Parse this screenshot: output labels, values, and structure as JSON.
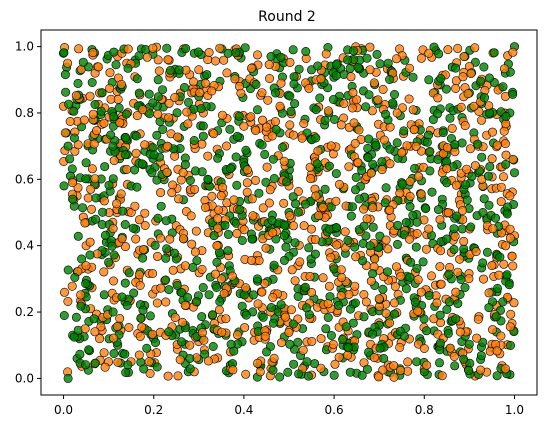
{
  "chart_data": {
    "type": "scatter",
    "title": "Round 2",
    "xlabel": "",
    "ylabel": "",
    "xlim": [
      -0.05,
      1.05
    ],
    "ylim": [
      -0.05,
      1.05
    ],
    "x_ticks": [
      0.0,
      0.2,
      0.4,
      0.6,
      0.8,
      1.0
    ],
    "x_tick_labels": [
      "0.0",
      "0.2",
      "0.4",
      "0.6",
      "0.8",
      "1.0"
    ],
    "y_ticks": [
      0.0,
      0.2,
      0.4,
      0.6,
      0.8,
      1.0
    ],
    "y_tick_labels": [
      "0.0",
      "0.2",
      "0.4",
      "0.6",
      "0.8",
      "1.0"
    ],
    "grid": false,
    "legend": false,
    "marker_alpha": 0.8,
    "series": [
      {
        "color": "#ff7f0e",
        "points_total": 1000,
        "points": [
          [
            0.0,
            0.82
          ],
          [
            0.02,
            0.59
          ],
          [
            0.03,
            0.55
          ],
          [
            0.05,
            0.47
          ],
          [
            0.06,
            0.57
          ],
          [
            0.07,
            0.92
          ],
          [
            0.08,
            0.86
          ],
          [
            0.05,
            0.4
          ],
          [
            0.04,
            0.33
          ],
          [
            0.06,
            0.21
          ],
          [
            0.08,
            0.12
          ],
          [
            0.1,
            0.05
          ],
          [
            0.12,
            0.97
          ],
          [
            0.13,
            0.78
          ],
          [
            0.14,
            0.63
          ],
          [
            0.15,
            0.5
          ],
          [
            0.16,
            0.42
          ],
          [
            0.17,
            0.28
          ],
          [
            0.18,
            0.15
          ],
          [
            0.19,
            0.05
          ],
          [
            0.21,
            0.96
          ],
          [
            0.22,
            0.84
          ],
          [
            0.23,
            0.7
          ],
          [
            0.24,
            0.56
          ],
          [
            0.25,
            0.46
          ],
          [
            0.26,
            0.33
          ],
          [
            0.27,
            0.22
          ],
          [
            0.28,
            0.1
          ],
          [
            0.29,
            0.02
          ],
          [
            0.3,
            0.93
          ],
          [
            0.31,
            0.8
          ],
          [
            0.32,
            0.67
          ],
          [
            0.33,
            0.52
          ],
          [
            0.34,
            0.4
          ],
          [
            0.35,
            0.3
          ],
          [
            0.36,
            0.18
          ],
          [
            0.37,
            0.08
          ],
          [
            0.38,
            0.99
          ],
          [
            0.39,
            0.88
          ],
          [
            0.4,
            0.76
          ],
          [
            0.41,
            0.62
          ],
          [
            0.42,
            0.49
          ],
          [
            0.43,
            0.37
          ],
          [
            0.44,
            0.26
          ],
          [
            0.45,
            0.14
          ],
          [
            0.46,
            0.03
          ],
          [
            0.47,
            0.94
          ],
          [
            0.48,
            0.82
          ],
          [
            0.49,
            0.7
          ],
          [
            0.5,
            0.58
          ],
          [
            0.51,
            0.46
          ],
          [
            0.52,
            0.34
          ],
          [
            0.53,
            0.22
          ],
          [
            0.54,
            0.11
          ],
          [
            0.55,
            0.01
          ],
          [
            0.56,
            0.9
          ],
          [
            0.57,
            0.78
          ],
          [
            0.58,
            0.65
          ],
          [
            0.59,
            0.53
          ],
          [
            0.6,
            0.41
          ],
          [
            0.61,
            0.29
          ],
          [
            0.62,
            0.17
          ],
          [
            0.63,
            0.07
          ],
          [
            0.64,
            0.96
          ],
          [
            0.65,
            0.84
          ],
          [
            0.66,
            0.72
          ],
          [
            0.67,
            0.6
          ],
          [
            0.68,
            0.48
          ],
          [
            0.69,
            0.36
          ],
          [
            0.7,
            0.24
          ],
          [
            0.71,
            0.12
          ],
          [
            0.72,
            0.04
          ],
          [
            0.73,
            0.92
          ],
          [
            0.74,
            0.8
          ],
          [
            0.75,
            0.68
          ],
          [
            0.76,
            0.56
          ],
          [
            0.77,
            0.44
          ],
          [
            0.78,
            0.32
          ],
          [
            0.79,
            0.2
          ],
          [
            0.8,
            0.09
          ],
          [
            0.81,
            0.98
          ],
          [
            0.82,
            0.86
          ],
          [
            0.83,
            0.74
          ],
          [
            0.84,
            0.62
          ],
          [
            0.85,
            0.5
          ],
          [
            0.86,
            0.38
          ],
          [
            0.87,
            0.26
          ],
          [
            0.88,
            0.14
          ],
          [
            0.89,
            0.05
          ],
          [
            0.9,
            0.94
          ],
          [
            0.91,
            0.82
          ],
          [
            0.92,
            0.7
          ],
          [
            0.93,
            0.58
          ],
          [
            0.94,
            0.46
          ],
          [
            0.95,
            0.34
          ],
          [
            0.96,
            0.22
          ],
          [
            0.97,
            0.1
          ],
          [
            0.98,
            0.85
          ],
          [
            0.99,
            0.55
          ],
          [
            1.0,
            0.43
          ]
        ]
      },
      {
        "color": "#008000",
        "points_total": 1000,
        "points": [
          [
            0.0,
            0.98
          ],
          [
            0.01,
            0.7
          ],
          [
            0.02,
            0.13
          ],
          [
            0.01,
            0.0
          ],
          [
            0.03,
            0.06
          ],
          [
            0.04,
            0.36
          ],
          [
            0.05,
            0.65
          ],
          [
            0.07,
            0.78
          ],
          [
            0.09,
            0.55
          ],
          [
            0.1,
            0.35
          ],
          [
            0.11,
            0.2
          ],
          [
            0.12,
            0.1
          ],
          [
            0.13,
            0.88
          ],
          [
            0.14,
            0.72
          ],
          [
            0.15,
            0.58
          ],
          [
            0.16,
            0.45
          ],
          [
            0.17,
            0.32
          ],
          [
            0.18,
            0.22
          ],
          [
            0.2,
            0.12
          ],
          [
            0.21,
            0.9
          ],
          [
            0.22,
            0.75
          ],
          [
            0.23,
            0.62
          ],
          [
            0.24,
            0.48
          ],
          [
            0.25,
            0.36
          ],
          [
            0.26,
            0.26
          ],
          [
            0.27,
            0.16
          ],
          [
            0.28,
            0.06
          ],
          [
            0.29,
            0.98
          ],
          [
            0.3,
            0.85
          ],
          [
            0.31,
            0.73
          ],
          [
            0.32,
            0.6
          ],
          [
            0.33,
            0.47
          ],
          [
            0.34,
            0.35
          ],
          [
            0.35,
            0.24
          ],
          [
            0.36,
            0.13
          ],
          [
            0.37,
            0.04
          ],
          [
            0.38,
            0.91
          ],
          [
            0.39,
            0.79
          ],
          [
            0.4,
            0.66
          ],
          [
            0.41,
            0.54
          ],
          [
            0.42,
            0.42
          ],
          [
            0.43,
            0.3
          ],
          [
            0.44,
            0.19
          ],
          [
            0.45,
            0.08
          ],
          [
            0.46,
            0.97
          ],
          [
            0.47,
            0.86
          ],
          [
            0.48,
            0.74
          ],
          [
            0.49,
            0.61
          ],
          [
            0.5,
            0.5
          ],
          [
            0.51,
            0.38
          ],
          [
            0.52,
            0.27
          ],
          [
            0.53,
            0.15
          ],
          [
            0.54,
            0.05
          ],
          [
            0.55,
            0.93
          ],
          [
            0.56,
            0.81
          ],
          [
            0.57,
            0.69
          ],
          [
            0.58,
            0.57
          ],
          [
            0.59,
            0.45
          ],
          [
            0.6,
            0.33
          ],
          [
            0.61,
            0.22
          ],
          [
            0.62,
            0.1
          ],
          [
            0.63,
            0.99
          ],
          [
            0.64,
            0.88
          ],
          [
            0.65,
            0.76
          ],
          [
            0.66,
            0.64
          ],
          [
            0.67,
            0.52
          ],
          [
            0.68,
            0.4
          ],
          [
            0.69,
            0.28
          ],
          [
            0.7,
            0.16
          ],
          [
            0.71,
            0.06
          ],
          [
            0.72,
            0.95
          ],
          [
            0.73,
            0.83
          ],
          [
            0.74,
            0.71
          ],
          [
            0.75,
            0.59
          ],
          [
            0.76,
            0.47
          ],
          [
            0.77,
            0.35
          ],
          [
            0.78,
            0.23
          ],
          [
            0.79,
            0.12
          ],
          [
            0.8,
            0.02
          ],
          [
            0.81,
            0.9
          ],
          [
            0.82,
            0.78
          ],
          [
            0.83,
            0.66
          ],
          [
            0.84,
            0.54
          ],
          [
            0.85,
            0.42
          ],
          [
            0.86,
            0.3
          ],
          [
            0.87,
            0.18
          ],
          [
            0.88,
            0.08
          ],
          [
            0.89,
            0.97
          ],
          [
            0.9,
            0.86
          ],
          [
            0.91,
            0.74
          ],
          [
            0.92,
            0.62
          ],
          [
            0.93,
            0.5
          ],
          [
            0.94,
            0.38
          ],
          [
            0.95,
            0.26
          ],
          [
            0.96,
            0.14
          ],
          [
            0.97,
            0.03
          ],
          [
            0.98,
            0.92
          ],
          [
            0.99,
            0.8
          ],
          [
            1.0,
            1.0
          ],
          [
            1.0,
            0.62
          ]
        ]
      }
    ]
  }
}
